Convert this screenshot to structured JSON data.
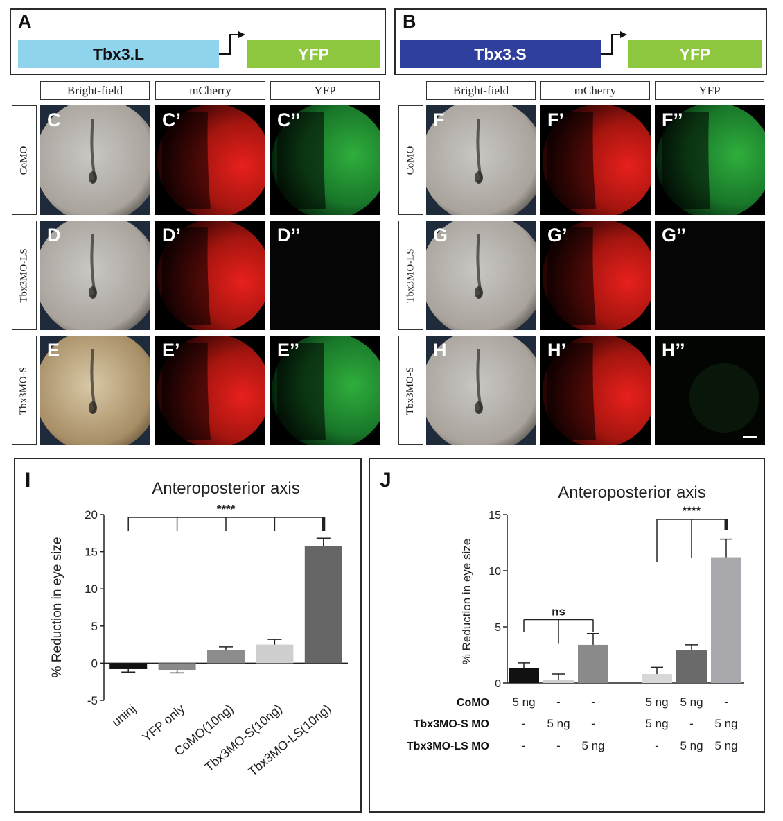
{
  "constructs": [
    {
      "panel": "A",
      "gene": "Tbx3.L",
      "reporter": "YFP",
      "gene_color": "#8fd4ec",
      "reporter_color": "#8dc63f"
    },
    {
      "panel": "B",
      "gene": "Tbx3.S",
      "reporter": "YFP",
      "gene_color": "#2f3f9e",
      "reporter_color": "#8dc63f"
    }
  ],
  "grid_left": {
    "columns": [
      "Bright-field",
      "mCherry",
      "YFP"
    ],
    "rows": [
      {
        "label": "CoMO",
        "panels": [
          "C",
          "C’",
          "C’’"
        ],
        "yfp": "strong"
      },
      {
        "label": "Tbx3MO-LS",
        "panels": [
          "D",
          "D’",
          "D’’"
        ],
        "yfp": "none"
      },
      {
        "label": "Tbx3MO-S",
        "panels": [
          "E",
          "E’",
          "E’’"
        ],
        "yfp": "strong"
      }
    ]
  },
  "grid_right": {
    "columns": [
      "Bright-field",
      "mCherry",
      "YFP"
    ],
    "rows": [
      {
        "label": "CoMO",
        "panels": [
          "F",
          "F’",
          "F’’"
        ],
        "yfp": "strong"
      },
      {
        "label": "Tbx3MO-LS",
        "panels": [
          "G",
          "G’",
          "G’’"
        ],
        "yfp": "none"
      },
      {
        "label": "Tbx3MO-S",
        "panels": [
          "H",
          "H’",
          "H’’"
        ],
        "yfp": "faint"
      }
    ]
  },
  "chart_data": [
    {
      "panel": "I",
      "type": "bar",
      "title": "Anteroposterior axis",
      "ylabel": "% Reduction in eye size",
      "ylim": [
        -5,
        20
      ],
      "yticks": [
        "-5",
        "0",
        "5",
        "10",
        "15",
        "20"
      ],
      "categories": [
        "uninj",
        "YFP only",
        "CoMO(10ng)",
        "Tbx3MO-S(10ng)",
        "Tbx3MO-LS(10ng)"
      ],
      "values": [
        -0.8,
        -0.9,
        1.8,
        2.5,
        15.8
      ],
      "errors": [
        0.4,
        0.4,
        0.4,
        0.7,
        1.0
      ],
      "colors": [
        "#111111",
        "#8a8a8a",
        "#8c8c8c",
        "#cfcfcf",
        "#666666"
      ],
      "significance": "****"
    },
    {
      "panel": "J",
      "type": "bar",
      "title": "Anteroposterior axis",
      "ylabel": "% Reduction in eye size",
      "ylim": [
        0,
        15
      ],
      "yticks": [
        "0",
        "5",
        "10",
        "15"
      ],
      "values": [
        1.3,
        0.3,
        3.4,
        0.8,
        2.9,
        11.2
      ],
      "errors": [
        0.5,
        0.5,
        1.0,
        0.6,
        0.5,
        1.6
      ],
      "colors": [
        "#111111",
        "#cfcfcf",
        "#8a8a8a",
        "#d8d8d8",
        "#6a6a6a",
        "#a8a8ad"
      ],
      "sig_left": "ns",
      "sig_right": "****",
      "conditions": [
        {
          "label": "CoMO",
          "values": [
            "5 ng",
            "-",
            "-",
            "5 ng",
            "5 ng",
            "-"
          ]
        },
        {
          "label": "Tbx3MO-S MO",
          "values": [
            "-",
            "5 ng",
            "-",
            "5 ng",
            "-",
            "5 ng"
          ]
        },
        {
          "label": "Tbx3MO-LS MO",
          "values": [
            "-",
            "-",
            "5 ng",
            "-",
            "5 ng",
            "5 ng"
          ]
        }
      ]
    }
  ]
}
